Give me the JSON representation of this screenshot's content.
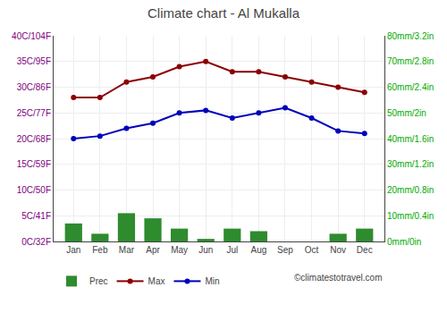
{
  "chart_data": {
    "type": "bar",
    "title": "Climate chart - Al Mukalla",
    "categories": [
      "Jan",
      "Feb",
      "Mar",
      "Apr",
      "May",
      "Jun",
      "Jul",
      "Aug",
      "Sep",
      "Oct",
      "Nov",
      "Dec"
    ],
    "series": [
      {
        "name": "Prec",
        "type": "bar",
        "axis": "y2",
        "color": "#2e8b2e",
        "values": [
          7,
          3,
          11,
          9,
          5,
          1,
          5,
          4,
          0,
          0,
          3,
          5
        ]
      },
      {
        "name": "Max",
        "type": "line",
        "marker": "circle",
        "color": "#8b0000",
        "values": [
          28,
          28,
          31,
          32,
          34,
          35,
          33,
          33,
          32,
          31,
          30,
          29
        ]
      },
      {
        "name": "Min",
        "type": "line",
        "marker": "circle",
        "color": "#0000bb",
        "values": [
          20,
          20.5,
          22,
          23,
          25,
          25.5,
          24,
          25,
          26,
          24,
          21.5,
          21
        ]
      }
    ],
    "ylim": [
      0,
      40
    ],
    "yticks": [
      {
        "value": 0,
        "label": "0C/32F"
      },
      {
        "value": 5,
        "label": "5C/41F"
      },
      {
        "value": 10,
        "label": "10C/50F"
      },
      {
        "value": 15,
        "label": "15C/59F"
      },
      {
        "value": 20,
        "label": "20C/68F"
      },
      {
        "value": 25,
        "label": "25C/77F"
      },
      {
        "value": 30,
        "label": "30C/86F"
      },
      {
        "value": 35,
        "label": "35C/95F"
      },
      {
        "value": 40,
        "label": "40C/104F"
      }
    ],
    "y2lim": [
      0,
      80
    ],
    "y2ticks": [
      {
        "value": 0,
        "label": "0mm/0in"
      },
      {
        "value": 10,
        "label": "10mm/0.4in"
      },
      {
        "value": 20,
        "label": "20mm/0.8in"
      },
      {
        "value": 30,
        "label": "30mm/1.2in"
      },
      {
        "value": 40,
        "label": "40mm/1.6in"
      },
      {
        "value": 50,
        "label": "50mm/2in"
      },
      {
        "value": 60,
        "label": "60mm/2.4in"
      },
      {
        "value": 70,
        "label": "70mm/2.8in"
      },
      {
        "value": 80,
        "label": "80mm/3.2in"
      }
    ],
    "grid": true,
    "legend": "bottom",
    "annotations": [
      {
        "text": "©climatestotravel.com"
      }
    ]
  }
}
